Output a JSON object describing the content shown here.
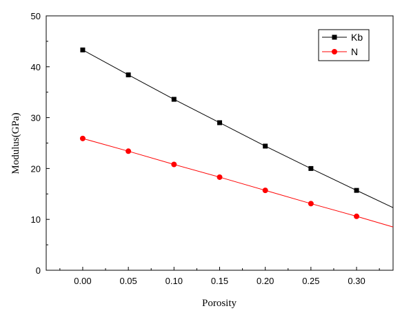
{
  "chart_data": {
    "type": "line",
    "xlabel": "Porosity",
    "ylabel": "Modulus(GPa)",
    "xlim": [
      -0.04,
      0.34
    ],
    "ylim": [
      0,
      50
    ],
    "xticks": [
      "0.00",
      "0.05",
      "0.10",
      "0.15",
      "0.20",
      "0.25",
      "0.30"
    ],
    "yticks": [
      "0",
      "10",
      "20",
      "30",
      "40",
      "50"
    ],
    "grid": false,
    "legend_position": "top-right",
    "x": [
      0.0,
      0.05,
      0.1,
      0.15,
      0.2,
      0.25,
      0.3
    ],
    "series": [
      {
        "name": "Kb",
        "marker": "square",
        "color": "#000000",
        "values": [
          43.3,
          38.4,
          33.6,
          29.0,
          24.4,
          20.0,
          15.7
        ],
        "line_end": [
          0.34,
          12.3
        ]
      },
      {
        "name": "N",
        "marker": "circle",
        "color": "#ff0000",
        "values": [
          25.9,
          23.4,
          20.8,
          18.3,
          15.7,
          13.1,
          10.6
        ],
        "line_end": [
          0.34,
          8.5
        ]
      }
    ]
  }
}
